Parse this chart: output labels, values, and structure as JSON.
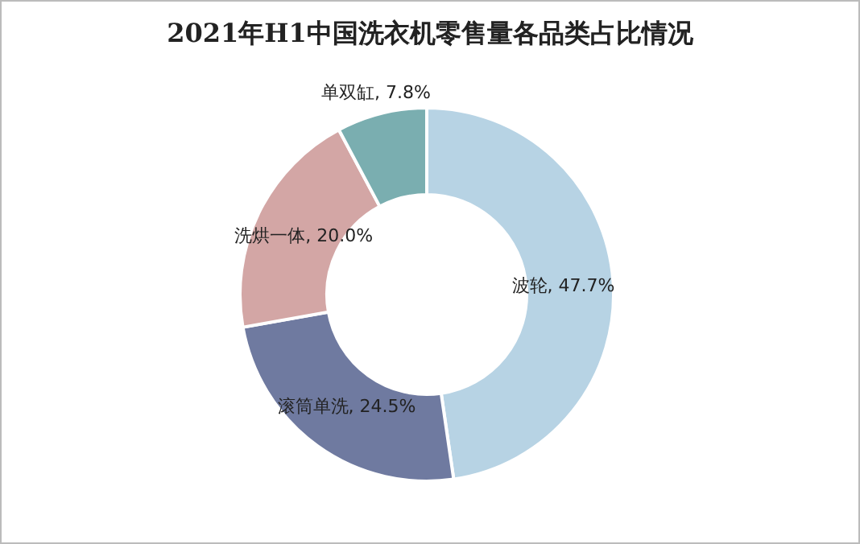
{
  "chart_data": {
    "type": "donut",
    "title": "2021年H1中国洗衣机零售量各品类占比情况",
    "categories": [
      "波轮",
      "滚筒单洗",
      "洗烘一体",
      "单双缸"
    ],
    "values": [
      47.7,
      24.5,
      20.0,
      7.8
    ],
    "value_labels": [
      "47.7%",
      "24.5%",
      "20.0%",
      "7.8%"
    ],
    "colors": [
      "#b7d3e4",
      "#6f7aa0",
      "#d3a6a5",
      "#7aaeb0"
    ]
  }
}
